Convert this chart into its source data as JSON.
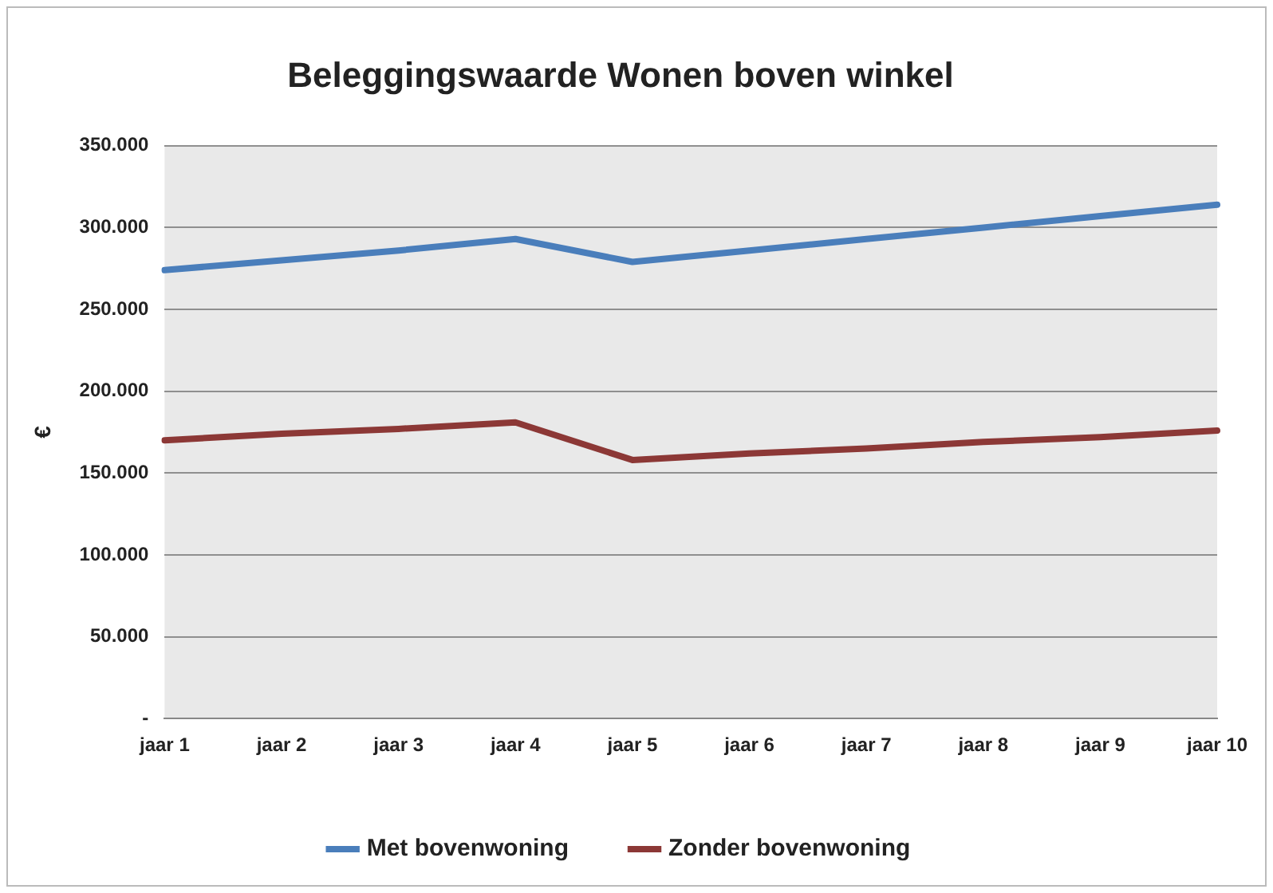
{
  "chart_data": {
    "type": "line",
    "title": "Beleggingswaarde Wonen boven winkel",
    "ylabel": "€",
    "categories": [
      "jaar 1",
      "jaar 2",
      "jaar 3",
      "jaar 4",
      "jaar 5",
      "jaar 6",
      "jaar 7",
      "jaar 8",
      "jaar 9",
      "jaar 10"
    ],
    "series": [
      {
        "name": "Met bovenwoning",
        "color": "#4a7ebb",
        "values": [
          274000,
          280000,
          286000,
          293000,
          279000,
          286000,
          293000,
          300000,
          307000,
          314000
        ]
      },
      {
        "name": "Zonder bovenwoning",
        "color": "#8c3836",
        "values": [
          170000,
          174000,
          177000,
          181000,
          158000,
          162000,
          165000,
          169000,
          172000,
          176000
        ]
      }
    ],
    "ylim": [
      0,
      350000
    ],
    "yticks": [
      {
        "value": 0,
        "label": "-"
      },
      {
        "value": 50000,
        "label": "50.000"
      },
      {
        "value": 100000,
        "label": "100.000"
      },
      {
        "value": 150000,
        "label": "150.000"
      },
      {
        "value": 200000,
        "label": "200.000"
      },
      {
        "value": 250000,
        "label": "250.000"
      },
      {
        "value": 300000,
        "label": "300.000"
      },
      {
        "value": 350000,
        "label": "350.000"
      }
    ],
    "grid": "y",
    "legend": "bottom",
    "marker": "none",
    "line_style": "solid"
  }
}
